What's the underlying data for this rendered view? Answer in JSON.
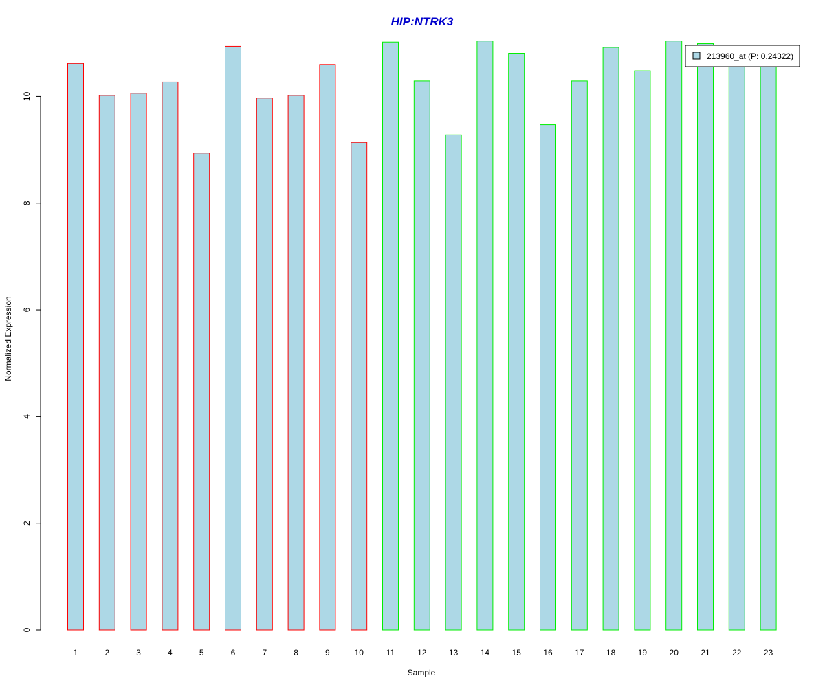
{
  "chart_data": {
    "type": "bar",
    "title": "HIP:NTRK3",
    "xlabel": "Sample",
    "ylabel": "Normalized Expression",
    "categories": [
      "1",
      "2",
      "3",
      "4",
      "5",
      "6",
      "7",
      "8",
      "9",
      "10",
      "11",
      "12",
      "13",
      "14",
      "15",
      "16",
      "17",
      "18",
      "19",
      "20",
      "21",
      "22",
      "23"
    ],
    "values": [
      10.62,
      10.02,
      10.06,
      10.27,
      8.94,
      10.94,
      9.97,
      10.02,
      10.6,
      9.14,
      11.02,
      10.29,
      9.28,
      11.04,
      10.81,
      9.47,
      10.29,
      10.92,
      10.48,
      11.04,
      10.99,
      10.7,
      10.72
    ],
    "series": [
      {
        "name": "213960_at (P: 0.24322)",
        "values": [
          10.62,
          10.02,
          10.06,
          10.27,
          8.94,
          10.94,
          9.97,
          10.02,
          10.6,
          9.14,
          11.02,
          10.29,
          9.28,
          11.04,
          10.81,
          9.47,
          10.29,
          10.92,
          10.48,
          11.04,
          10.99,
          10.7,
          10.72
        ]
      }
    ],
    "groups": [
      {
        "samples": [
          1,
          2,
          3,
          4,
          5,
          6,
          7,
          8,
          9,
          10
        ],
        "border_color": "#ff0000"
      },
      {
        "samples": [
          11,
          12,
          13,
          14,
          15,
          16,
          17,
          18,
          19,
          20,
          21,
          22,
          23
        ],
        "border_color": "#00ee00"
      }
    ],
    "ylim": [
      0,
      11.1
    ],
    "yticks": [
      0,
      2,
      4,
      6,
      8,
      10
    ],
    "bar_fill": "#add8e6",
    "title_color": "#0000cc",
    "grid": false,
    "legend_position": "top-right"
  }
}
